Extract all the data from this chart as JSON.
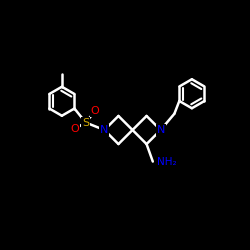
{
  "bg_color": "#000000",
  "bond_color_white": "#ffffff",
  "bond_width": 1.8,
  "atom_colors": {
    "N": "#0000ff",
    "O": "#ff0000",
    "S": "#d4aa00",
    "NH2": "#0000ff"
  },
  "font_size_atom": 8,
  "xlim": [
    0,
    10
  ],
  "ylim": [
    0,
    10
  ]
}
